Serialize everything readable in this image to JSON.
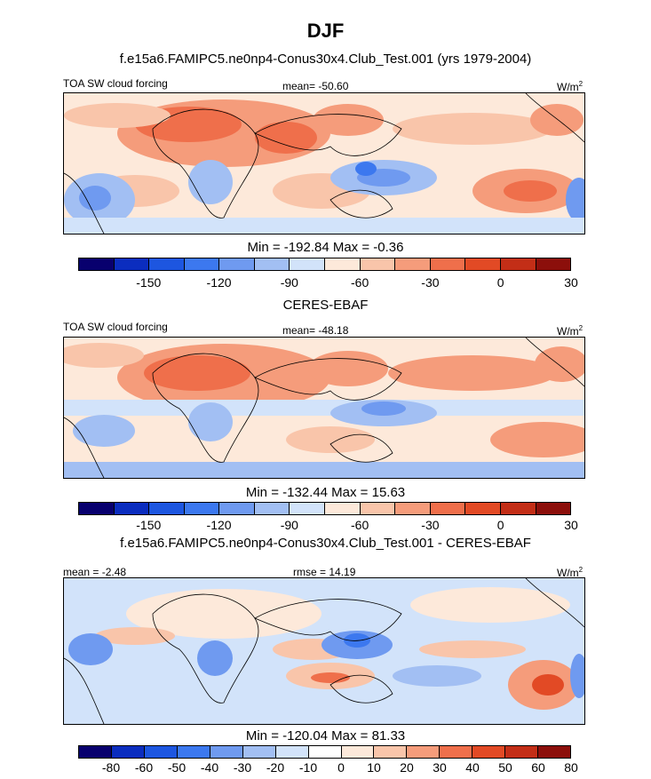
{
  "main_title": "DJF",
  "palette_a": [
    "#08006e",
    "#0b2dbf",
    "#1d56e0",
    "#3c78ef",
    "#6f9af0",
    "#a2bff3",
    "#d2e3fa",
    "#fde9da",
    "#f9c5aa",
    "#f59c7b",
    "#ef6f4b",
    "#e24a25",
    "#c32e17",
    "#8c0f0b"
  ],
  "palette_b": [
    "#08006e",
    "#0b2dbf",
    "#1d56e0",
    "#3c78ef",
    "#6f9af0",
    "#a2bff3",
    "#d2e3fa",
    "#ffffff",
    "#fde9da",
    "#f9c5aa",
    "#f59c7b",
    "#ef6f4b",
    "#e24a25",
    "#c32e17",
    "#8c0f0b"
  ],
  "chart_data": [
    {
      "type": "heatmap",
      "title": "f.e15a6.FAMIPC5.ne0np4-Conus30x4.Club_Test.001 (yrs 1979-2004)",
      "left_label": "TOA SW cloud forcing",
      "stat_label": "mean= -50.60",
      "units_base": "W/m",
      "units_sup": "2",
      "min_max": "Min = -192.84 Max =  -0.36",
      "colorbar_ticks": [
        "-150",
        "-120",
        "-90",
        "-60",
        "-30",
        "0",
        "30"
      ]
    },
    {
      "type": "heatmap",
      "title": "CERES-EBAF",
      "left_label": "TOA SW cloud forcing",
      "stat_label": "mean= -48.18",
      "units_base": "W/m",
      "units_sup": "2",
      "min_max": "Min = -132.44 Max =  15.63",
      "colorbar_ticks": [
        "-150",
        "-120",
        "-90",
        "-60",
        "-30",
        "0",
        "30"
      ]
    },
    {
      "type": "heatmap",
      "title": "f.e15a6.FAMIPC5.ne0np4-Conus30x4.Club_Test.001 - CERES-EBAF",
      "left_label": "mean =  -2.48",
      "stat_label": "rmse =  14.19",
      "units_base": "W/m",
      "units_sup": "2",
      "min_max": "Min = -120.04 Max =  81.33",
      "colorbar_ticks": [
        "-80",
        "-60",
        "-50",
        "-40",
        "-30",
        "-20",
        "-10",
        "0",
        "10",
        "20",
        "30",
        "40",
        "50",
        "60",
        "80"
      ]
    }
  ]
}
